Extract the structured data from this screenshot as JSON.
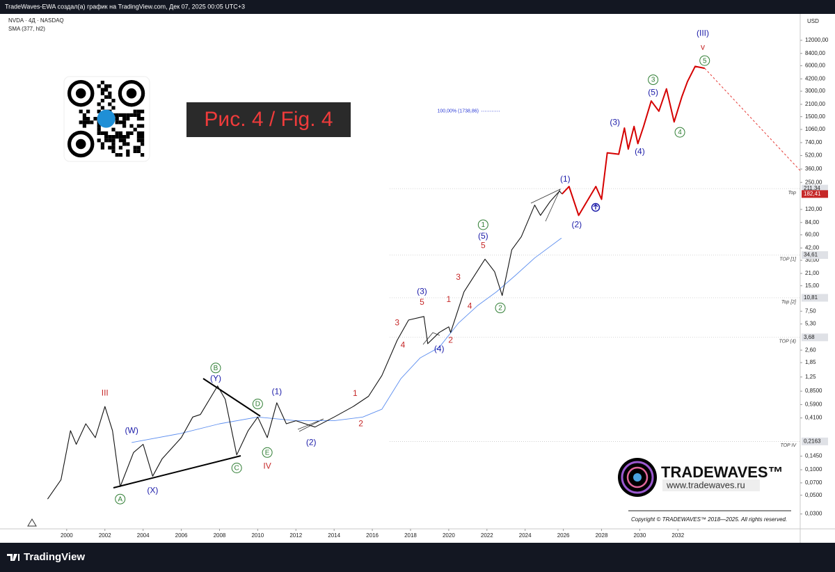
{
  "chart_data": {
    "type": "line",
    "title": "TradeWaves-EWA создал(а) график на TradingView.com, Дек 07, 2025 00:05 UTC+3",
    "currency": "USD",
    "badge": "Рис. 4 / Fig. 4",
    "brand": {
      "name": "TRADEWAVES™",
      "url": "www.tradewaves.ru",
      "copyright": "Copyright © TRADEWAVES™ 2018—2025. All rights reserved."
    },
    "footer_logo": "TradingView",
    "log_scale": true,
    "grid": false,
    "xlim": [
      1996.8,
      2038.4
    ],
    "xticks": [
      2000,
      2002,
      2004,
      2006,
      2008,
      2010,
      2012,
      2014,
      2016,
      2018,
      2020,
      2022,
      2024,
      2026,
      2028,
      2030,
      2032
    ],
    "ylim": [
      0.02,
      23700
    ],
    "yticks": [
      {
        "value": 12000,
        "label": "12000,00"
      },
      {
        "value": 8400,
        "label": "8400,00"
      },
      {
        "value": 6000,
        "label": "6000,00"
      },
      {
        "value": 4200,
        "label": "4200,00"
      },
      {
        "value": 3000,
        "label": "3000,00"
      },
      {
        "value": 2100,
        "label": "2100,00"
      },
      {
        "value": 1500,
        "label": "1500,00"
      },
      {
        "value": 1060,
        "label": "1060,00"
      },
      {
        "value": 740,
        "label": "740,00"
      },
      {
        "value": 520,
        "label": "520,00"
      },
      {
        "value": 360,
        "label": "360,00"
      },
      {
        "value": 250,
        "label": "250,00"
      },
      {
        "value": 120,
        "label": "120,00"
      },
      {
        "value": 84,
        "label": "84,00"
      },
      {
        "value": 60,
        "label": "60,00"
      },
      {
        "value": 42,
        "label": "42,00"
      },
      {
        "value": 30,
        "label": "30,00"
      },
      {
        "value": 21,
        "label": "21,00"
      },
      {
        "value": 15,
        "label": "15,00"
      },
      {
        "value": 7.5,
        "label": "7,50"
      },
      {
        "value": 5.3,
        "label": "5,30"
      },
      {
        "value": 2.6,
        "label": "2,60"
      },
      {
        "value": 1.85,
        "label": "1,85"
      },
      {
        "value": 1.25,
        "label": "1,25"
      },
      {
        "value": 0.85,
        "label": "0,8500"
      },
      {
        "value": 0.59,
        "label": "0,5900"
      },
      {
        "value": 0.41,
        "label": "0,4100"
      },
      {
        "value": 0.145,
        "label": "0,1450"
      },
      {
        "value": 0.1,
        "label": "0,1000"
      },
      {
        "value": 0.07,
        "label": "0,0700"
      },
      {
        "value": 0.05,
        "label": "0,0500"
      },
      {
        "value": 0.03,
        "label": "0,0300"
      }
    ],
    "series": [
      {
        "name": "NVDA · 4Д · NASDAQ",
        "color": "#111111",
        "x": [
          1999.0,
          1999.7,
          2000.2,
          2000.5,
          2001.0,
          2001.5,
          2002.0,
          2002.4,
          2002.8,
          2003.5,
          2004.0,
          2004.5,
          2005.0,
          2006.0,
          2006.6,
          2007.0,
          2007.9,
          2008.3,
          2008.9,
          2009.5,
          2010.0,
          2010.5,
          2011.0,
          2011.5,
          2012.0,
          2013.0,
          2014.0,
          2015.0,
          2015.8,
          2016.5,
          2017.3,
          2017.9,
          2018.7,
          2018.9,
          2019.5,
          2020.0,
          2020.1,
          2020.8,
          2021.9,
          2022.4,
          2022.8,
          2023.3,
          2023.8,
          2024.5,
          2024.8,
          2025.3,
          2025.8,
          2025.93
        ],
        "values": [
          0.045,
          0.076,
          0.29,
          0.2,
          0.35,
          0.24,
          0.56,
          0.29,
          0.063,
          0.16,
          0.2,
          0.084,
          0.135,
          0.24,
          0.42,
          0.45,
          0.98,
          0.68,
          0.15,
          0.29,
          0.42,
          0.24,
          0.62,
          0.35,
          0.38,
          0.32,
          0.42,
          0.56,
          0.74,
          1.3,
          3.4,
          5.9,
          6.5,
          3.1,
          4.2,
          4.9,
          4.2,
          12.7,
          31,
          22,
          11.5,
          40,
          57,
          135,
          102,
          148,
          198,
          182.41
        ]
      },
      {
        "name": "SMA (377, hl2)",
        "color": "#5b8def",
        "x": [
          2003.4,
          2006.0,
          2008.0,
          2010.0,
          2012.0,
          2014.0,
          2015.5,
          2016.5,
          2017.5,
          2018.5,
          2019.5,
          2020.5,
          2021.5,
          2022.5,
          2023.5,
          2024.5,
          2025.9
        ],
        "values": [
          0.21,
          0.27,
          0.35,
          0.42,
          0.38,
          0.38,
          0.42,
          0.52,
          1.2,
          2.1,
          2.8,
          5.4,
          8.7,
          12.7,
          20,
          32,
          55
        ]
      }
    ],
    "projection": {
      "color": "#d50000",
      "x": [
        2025.93,
        2026.3,
        2026.8,
        2027.7,
        2028.0,
        2028.3,
        2028.9,
        2029.2,
        2029.4,
        2029.7,
        2029.9,
        2030.2,
        2030.6,
        2031.0,
        2031.4,
        2031.8,
        2032.2,
        2032.5,
        2032.9,
        2033.4
      ],
      "values": [
        182.41,
        224,
        102,
        224,
        158,
        560,
        540,
        1100,
        620,
        1150,
        720,
        1150,
        2300,
        1740,
        3200,
        1300,
        2560,
        3900,
        5900,
        5600
      ]
    },
    "target_line": {
      "color": "#e53935",
      "x": [
        2033.4,
        2038.4
      ],
      "values": [
        5600,
        345
      ]
    },
    "fib_level": {
      "label": "100,00% (1738,86)",
      "value": 1738.86,
      "color": "#2b3bd6"
    },
    "last_price": {
      "value": 182.41,
      "label": "182,41",
      "color": "#c62828"
    },
    "levels": [
      {
        "name": "Top",
        "value": 211.34,
        "label": "211,34"
      },
      {
        "name": "TOP [1]",
        "value": 34.61,
        "label": "34,61"
      },
      {
        "name": "Top [2]",
        "value": 10.81,
        "label": "10,81"
      },
      {
        "name": "TOP (4)",
        "value": 3.68,
        "label": "3,68"
      },
      {
        "name": "TOP IV",
        "value": 0.2163,
        "label": "0,2163"
      }
    ],
    "annotations": [
      {
        "text": "III",
        "x": 2002.0,
        "y": 0.81,
        "color": "#c62828",
        "circled": false
      },
      {
        "text": "(W)",
        "x": 2003.4,
        "y": 0.29,
        "color": "#1a1aa8",
        "circled": false
      },
      {
        "text": "A",
        "x": 2002.8,
        "y": 0.045,
        "color": "#2e7d32",
        "circled": true
      },
      {
        "text": "(X)",
        "x": 2004.5,
        "y": 0.057,
        "color": "#1a1aa8",
        "circled": false
      },
      {
        "text": "B",
        "x": 2007.8,
        "y": 1.6,
        "color": "#2e7d32",
        "circled": true
      },
      {
        "text": "(Y)",
        "x": 2007.8,
        "y": 1.2,
        "color": "#1a1aa8",
        "circled": false
      },
      {
        "text": "D",
        "x": 2010.0,
        "y": 0.6,
        "color": "#2e7d32",
        "circled": true
      },
      {
        "text": "C",
        "x": 2008.9,
        "y": 0.105,
        "color": "#2e7d32",
        "circled": true
      },
      {
        "text": "E",
        "x": 2010.5,
        "y": 0.16,
        "color": "#2e7d32",
        "circled": true
      },
      {
        "text": "IV",
        "x": 2010.5,
        "y": 0.11,
        "color": "#c62828",
        "circled": false
      },
      {
        "text": "(1)",
        "x": 2011.0,
        "y": 0.84,
        "color": "#1a1aa8",
        "circled": false
      },
      {
        "text": "(2)",
        "x": 2012.8,
        "y": 0.21,
        "color": "#1a1aa8",
        "circled": false
      },
      {
        "text": "1",
        "x": 2015.1,
        "y": 0.8,
        "color": "#c62828",
        "circled": false
      },
      {
        "text": "2",
        "x": 2015.4,
        "y": 0.35,
        "color": "#c62828",
        "circled": false
      },
      {
        "text": "3",
        "x": 2017.3,
        "y": 5.5,
        "color": "#c62828",
        "circled": false
      },
      {
        "text": "4",
        "x": 2017.6,
        "y": 3.0,
        "color": "#c62828",
        "circled": false
      },
      {
        "text": "(3)",
        "x": 2018.6,
        "y": 12.9,
        "color": "#1a1aa8",
        "circled": false
      },
      {
        "text": "5",
        "x": 2018.6,
        "y": 9.6,
        "color": "#c62828",
        "circled": false
      },
      {
        "text": "(4)",
        "x": 2019.5,
        "y": 2.7,
        "color": "#1a1aa8",
        "circled": false
      },
      {
        "text": "2",
        "x": 2020.1,
        "y": 3.4,
        "color": "#c62828",
        "circled": false
      },
      {
        "text": "1",
        "x": 2020.0,
        "y": 10.3,
        "color": "#c62828",
        "circled": false
      },
      {
        "text": "3",
        "x": 2020.5,
        "y": 19,
        "color": "#c62828",
        "circled": false
      },
      {
        "text": "4",
        "x": 2021.1,
        "y": 8.6,
        "color": "#c62828",
        "circled": false
      },
      {
        "text": "1",
        "x": 2021.8,
        "y": 79,
        "color": "#2e7d32",
        "circled": true
      },
      {
        "text": "(5)",
        "x": 2021.8,
        "y": 58,
        "color": "#1a1aa8",
        "circled": false
      },
      {
        "text": "5",
        "x": 2021.8,
        "y": 45,
        "color": "#c62828",
        "circled": false
      },
      {
        "text": "2",
        "x": 2022.7,
        "y": 8.2,
        "color": "#2e7d32",
        "circled": true
      },
      {
        "text": "(1)",
        "x": 2026.1,
        "y": 275,
        "color": "#1a1aa8",
        "circled": false
      },
      {
        "text": "(2)",
        "x": 2026.7,
        "y": 79,
        "color": "#1a1aa8",
        "circled": false
      },
      {
        "text": "(3)",
        "x": 2028.7,
        "y": 1290,
        "color": "#1a1aa8",
        "circled": false
      },
      {
        "text": "(4)",
        "x": 2030.0,
        "y": 580,
        "color": "#1a1aa8",
        "circled": false
      },
      {
        "text": "(5)",
        "x": 2030.7,
        "y": 2900,
        "color": "#1a1aa8",
        "circled": false
      },
      {
        "text": "3",
        "x": 2030.7,
        "y": 4100,
        "color": "#2e7d32",
        "circled": true
      },
      {
        "text": "4",
        "x": 2032.1,
        "y": 980,
        "color": "#2e7d32",
        "circled": true
      },
      {
        "text": "5",
        "x": 2033.4,
        "y": 6900,
        "color": "#2e7d32",
        "circled": true
      },
      {
        "text": "v",
        "x": 2033.3,
        "y": 9900,
        "color": "#c62828",
        "circled": false
      },
      {
        "text": "(III)",
        "x": 2033.3,
        "y": 14500,
        "color": "#1a1aa8",
        "circled": false
      }
    ]
  }
}
